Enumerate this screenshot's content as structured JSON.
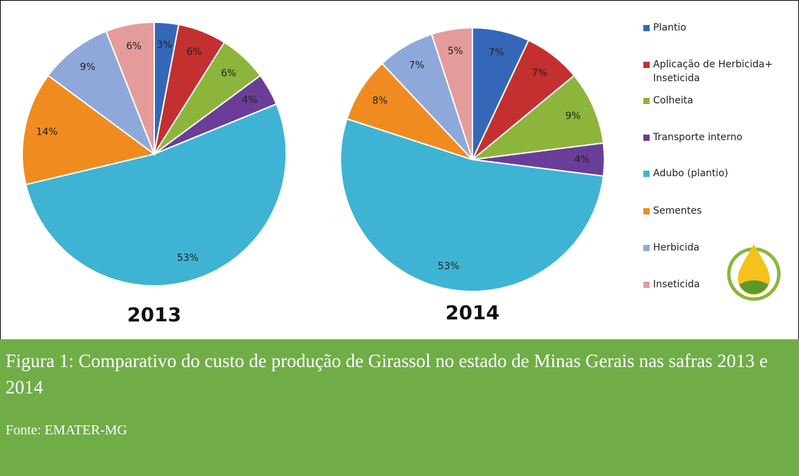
{
  "chart_data": [
    {
      "type": "pie",
      "title": "2013",
      "categories": [
        "Plantio",
        "Aplicação de Herbicida+ Inseticida",
        "Colheita",
        "Transporte interno",
        "Adubo (plantio)",
        "Sementes",
        "Herbicida",
        "Inseticida"
      ],
      "values": [
        3,
        6,
        6,
        4,
        53,
        14,
        9,
        6
      ],
      "value_labels": [
        "3%",
        "6%",
        "6%",
        "4%",
        "53%",
        "14%",
        "9%",
        "6%"
      ],
      "colors": [
        "#3567b8",
        "#c3302f",
        "#8db53c",
        "#6a3e98",
        "#3fb3d3",
        "#f08c1f",
        "#8ea8d9",
        "#e49b9b"
      ]
    },
    {
      "type": "pie",
      "title": "2014",
      "categories": [
        "Plantio",
        "Aplicação de Herbicida+ Inseticida",
        "Colheita",
        "Transporte interno",
        "Adubo (plantio)",
        "Sementes",
        "Herbicida",
        "Inseticida"
      ],
      "values": [
        7,
        7,
        9,
        4,
        53,
        8,
        7,
        5
      ],
      "value_labels": [
        "7%",
        "7%",
        "9%",
        "4%",
        "53%",
        "8%",
        "7%",
        "5%"
      ],
      "colors": [
        "#3567b8",
        "#c3302f",
        "#8db53c",
        "#6a3e98",
        "#3fb3d3",
        "#f08c1f",
        "#8ea8d9",
        "#e49b9b"
      ]
    }
  ],
  "caption": "Figura 1: Comparativo do custo de produção de Girassol no estado de Minas Gerais nas safras 2013 e 2014",
  "source": "Fonte: EMATER-MG"
}
